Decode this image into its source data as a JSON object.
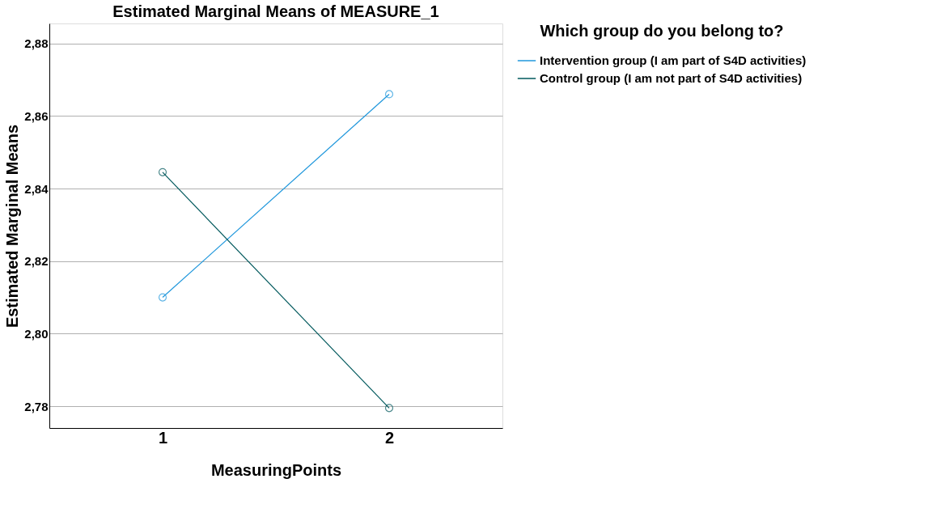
{
  "chart_data": {
    "type": "line",
    "title": "Estimated Marginal Means of MEASURE_1",
    "xlabel": "MeasuringPoints",
    "ylabel": "Estimated Marginal Means",
    "legend_title": "Which group do you belong to?",
    "categories": [
      "1",
      "2"
    ],
    "series": [
      {
        "name": "Intervention group (I am part of S4D activities)",
        "color": "#1f97dc",
        "values": [
          2.81,
          2.866
        ]
      },
      {
        "name": "Control group (I am not part of S4D activities)",
        "color": "#00585c",
        "values": [
          2.8445,
          2.7795
        ]
      }
    ],
    "ylim": [
      2.774,
      2.8855
    ],
    "yticks": [
      {
        "value": 2.78,
        "label": "2,78"
      },
      {
        "value": 2.8,
        "label": "2,80"
      },
      {
        "value": 2.82,
        "label": "2,82"
      },
      {
        "value": 2.84,
        "label": "2,84"
      },
      {
        "value": 2.86,
        "label": "2,86"
      },
      {
        "value": 2.88,
        "label": "2,88"
      }
    ],
    "grid": "y",
    "legend": "right",
    "marker": "circle",
    "line_style": "solid"
  }
}
